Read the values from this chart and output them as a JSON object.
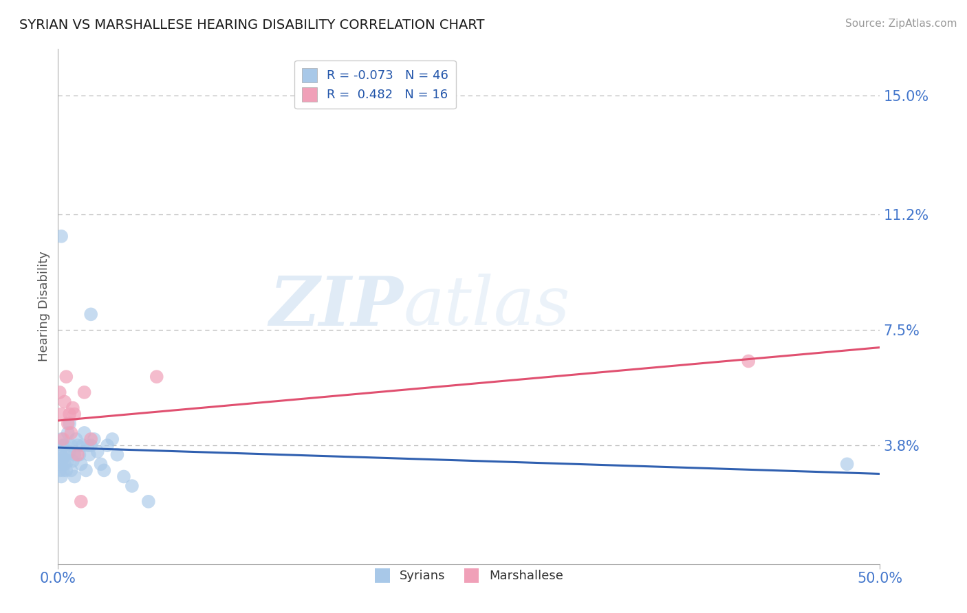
{
  "title": "SYRIAN VS MARSHALLESE HEARING DISABILITY CORRELATION CHART",
  "source": "Source: ZipAtlas.com",
  "ylabel": "Hearing Disability",
  "xlim": [
    0.0,
    0.5
  ],
  "ylim": [
    0.0,
    0.165
  ],
  "yticks": [
    0.038,
    0.075,
    0.112,
    0.15
  ],
  "ytick_labels": [
    "3.8%",
    "7.5%",
    "11.2%",
    "15.0%"
  ],
  "xticks": [
    0.0,
    0.5
  ],
  "xtick_labels": [
    "0.0%",
    "50.0%"
  ],
  "legend_R_syrian": "-0.073",
  "legend_N_syrian": "46",
  "legend_R_marshallese": "0.482",
  "legend_N_marshallese": "16",
  "watermark_zip": "ZIP",
  "watermark_atlas": "atlas",
  "syrian_color": "#A8C8E8",
  "marshallese_color": "#F0A0B8",
  "syrian_line_color": "#3060B0",
  "marshallese_line_color": "#E05070",
  "title_color": "#1a1a1a",
  "axis_tick_color": "#4477CC",
  "background_color": "#FFFFFF",
  "grid_color": "#BBBBBB",
  "syrian_x": [
    0.001,
    0.001,
    0.001,
    0.002,
    0.002,
    0.002,
    0.002,
    0.002,
    0.003,
    0.003,
    0.003,
    0.004,
    0.004,
    0.005,
    0.005,
    0.006,
    0.006,
    0.007,
    0.007,
    0.008,
    0.008,
    0.009,
    0.01,
    0.01,
    0.011,
    0.012,
    0.013,
    0.014,
    0.015,
    0.016,
    0.017,
    0.018,
    0.019,
    0.02,
    0.022,
    0.024,
    0.026,
    0.028,
    0.03,
    0.033,
    0.036,
    0.04,
    0.045,
    0.055,
    0.02,
    0.48
  ],
  "syrian_y": [
    0.03,
    0.033,
    0.036,
    0.028,
    0.032,
    0.035,
    0.04,
    0.105,
    0.03,
    0.034,
    0.038,
    0.032,
    0.038,
    0.03,
    0.035,
    0.033,
    0.042,
    0.036,
    0.045,
    0.03,
    0.038,
    0.033,
    0.028,
    0.035,
    0.04,
    0.038,
    0.035,
    0.032,
    0.038,
    0.042,
    0.03,
    0.038,
    0.035,
    0.038,
    0.04,
    0.036,
    0.032,
    0.03,
    0.038,
    0.04,
    0.035,
    0.028,
    0.025,
    0.02,
    0.08,
    0.032
  ],
  "marshallese_x": [
    0.001,
    0.002,
    0.003,
    0.004,
    0.005,
    0.006,
    0.007,
    0.008,
    0.009,
    0.01,
    0.012,
    0.014,
    0.016,
    0.02,
    0.42,
    0.06
  ],
  "marshallese_y": [
    0.055,
    0.048,
    0.04,
    0.052,
    0.06,
    0.045,
    0.048,
    0.042,
    0.05,
    0.048,
    0.035,
    0.02,
    0.055,
    0.04,
    0.065,
    0.06
  ]
}
